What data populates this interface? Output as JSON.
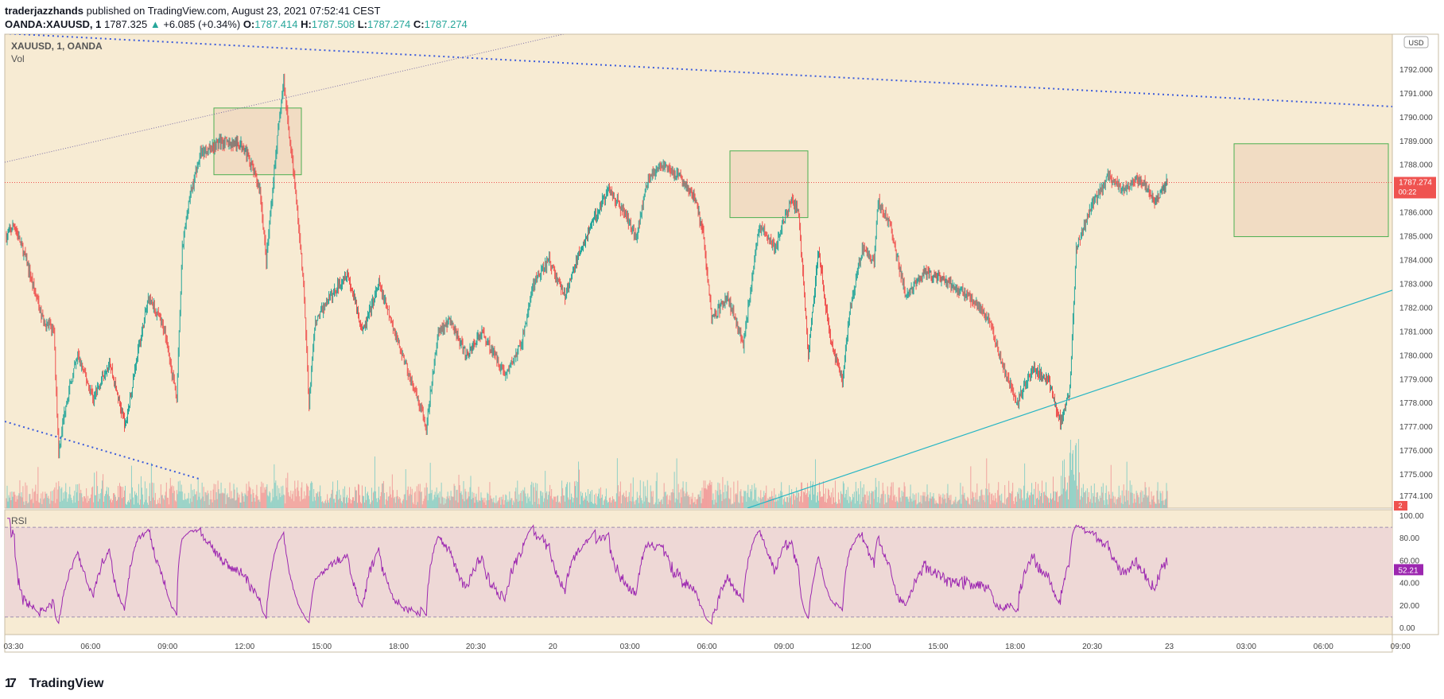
{
  "header": {
    "author": "traderjazzhands",
    "published_text": "published on TradingView.com, August 23, 2021 07:52:41 CEST",
    "symbol": "OANDA:XAUUSD, 1",
    "last_price": "1787.325",
    "change_arrow": "▲",
    "change": "+6.085 (+0.34%)",
    "o_label": "O:",
    "o_value": "1787.414",
    "h_label": "H:",
    "h_value": "1787.508",
    "l_label": "L:",
    "l_value": "1787.274",
    "c_label": "C:",
    "c_value": "1787.274"
  },
  "pane": {
    "symbol_label": "XAUUSD, 1, OANDA",
    "vol_label": "Vol",
    "rsi_label": "RSI",
    "currency_badge": "USD",
    "price_tag": "1787.274",
    "countdown": "00:22",
    "rsi_tag": "52.21",
    "vol_tag": "2"
  },
  "footer": {
    "logo_mark": "17",
    "brand": "TradingView"
  },
  "colors": {
    "background": "#f7ebd3",
    "up": "#26a69a",
    "down": "#ef5350",
    "rsi_line": "#9c27b0",
    "rsi_band": "#eed8d6",
    "channel": "#3b5bdb",
    "trendline": "#26b5c4",
    "box": "#4caf50"
  },
  "chart_data": {
    "type": "candlestick",
    "symbol": "XAUUSD",
    "interval": "1",
    "x_ticks": [
      "03:30",
      "06:00",
      "09:00",
      "12:00",
      "15:00",
      "18:00",
      "20:30",
      "20",
      "03:00",
      "06:00",
      "09:00",
      "12:00",
      "15:00",
      "18:00",
      "20:30",
      "23",
      "03:00",
      "06:00",
      "09:00"
    ],
    "y_ticks": [
      1774.1,
      1775.0,
      1776.0,
      1777.0,
      1778.0,
      1779.0,
      1780.0,
      1781.0,
      1782.0,
      1783.0,
      1784.0,
      1785.0,
      1786.0,
      1787.0,
      1788.0,
      1789.0,
      1790.0,
      1791.0,
      1792.0
    ],
    "ylim": [
      1773.6,
      1793.5
    ],
    "last_price": 1787.274,
    "rsi_ticks": [
      0,
      20,
      40,
      60,
      80,
      100
    ],
    "rsi_bands": [
      10,
      90
    ],
    "rsi_last": 52.21,
    "price_path": [
      [
        0,
        1785.0
      ],
      [
        10,
        1785.5
      ],
      [
        25,
        1784.0
      ],
      [
        45,
        1781.6
      ],
      [
        60,
        1781.0
      ],
      [
        66,
        1776.0
      ],
      [
        75,
        1778.0
      ],
      [
        90,
        1780.0
      ],
      [
        110,
        1778.2
      ],
      [
        130,
        1779.8
      ],
      [
        150,
        1777.0
      ],
      [
        165,
        1780.0
      ],
      [
        180,
        1782.5
      ],
      [
        200,
        1781.0
      ],
      [
        215,
        1778.2
      ],
      [
        222,
        1784.5
      ],
      [
        230,
        1786.5
      ],
      [
        245,
        1788.5
      ],
      [
        270,
        1789.0
      ],
      [
        300,
        1788.8
      ],
      [
        320,
        1787.0
      ],
      [
        328,
        1784.0
      ],
      [
        340,
        1788.5
      ],
      [
        350,
        1791.5
      ],
      [
        358,
        1789.0
      ],
      [
        366,
        1786.5
      ],
      [
        375,
        1783.0
      ],
      [
        382,
        1778.0
      ],
      [
        390,
        1781.5
      ],
      [
        410,
        1782.5
      ],
      [
        430,
        1783.5
      ],
      [
        450,
        1781.0
      ],
      [
        470,
        1783.0
      ],
      [
        490,
        1781.0
      ],
      [
        510,
        1779.0
      ],
      [
        530,
        1777.0
      ],
      [
        545,
        1781.0
      ],
      [
        560,
        1781.5
      ],
      [
        580,
        1780.0
      ],
      [
        600,
        1781.0
      ],
      [
        630,
        1779.2
      ],
      [
        650,
        1780.5
      ],
      [
        665,
        1783.0
      ],
      [
        685,
        1784.0
      ],
      [
        705,
        1782.5
      ],
      [
        725,
        1784.5
      ],
      [
        745,
        1786.0
      ],
      [
        760,
        1787.0
      ],
      [
        780,
        1786.0
      ],
      [
        795,
        1785.0
      ],
      [
        810,
        1787.5
      ],
      [
        830,
        1788.0
      ],
      [
        850,
        1787.5
      ],
      [
        870,
        1786.5
      ],
      [
        880,
        1785.0
      ],
      [
        890,
        1781.5
      ],
      [
        910,
        1782.5
      ],
      [
        930,
        1780.5
      ],
      [
        950,
        1785.5
      ],
      [
        970,
        1784.5
      ],
      [
        990,
        1786.5
      ],
      [
        1000,
        1786.0
      ],
      [
        1012,
        1780.0
      ],
      [
        1025,
        1784.5
      ],
      [
        1040,
        1780.5
      ],
      [
        1055,
        1779.0
      ],
      [
        1065,
        1782.0
      ],
      [
        1080,
        1784.5
      ],
      [
        1095,
        1784.0
      ],
      [
        1100,
        1786.5
      ],
      [
        1115,
        1785.5
      ],
      [
        1135,
        1782.5
      ],
      [
        1160,
        1783.5
      ],
      [
        1190,
        1783.0
      ],
      [
        1215,
        1782.5
      ],
      [
        1240,
        1781.5
      ],
      [
        1258,
        1779.5
      ],
      [
        1275,
        1778.0
      ],
      [
        1295,
        1779.5
      ],
      [
        1315,
        1779.0
      ],
      [
        1330,
        1777.2
      ],
      [
        1342,
        1778.5
      ],
      [
        1350,
        1784.5
      ],
      [
        1365,
        1786.0
      ],
      [
        1390,
        1787.5
      ],
      [
        1410,
        1787.0
      ],
      [
        1430,
        1787.5
      ],
      [
        1450,
        1786.5
      ],
      [
        1465,
        1787.3
      ]
    ],
    "annotations": {
      "boxes": [
        {
          "x_start": "11:05",
          "x_end": "14:20",
          "price_low": 1787.6,
          "price_high": 1790.4
        },
        {
          "x_start": "07:30",
          "x_end": "10:25",
          "price_low": 1785.8,
          "price_high": 1788.6
        },
        {
          "x_start": "03:30",
          "x_end": "09:00",
          "price_low": 1785.0,
          "price_high": 1788.9
        }
      ]
    }
  }
}
